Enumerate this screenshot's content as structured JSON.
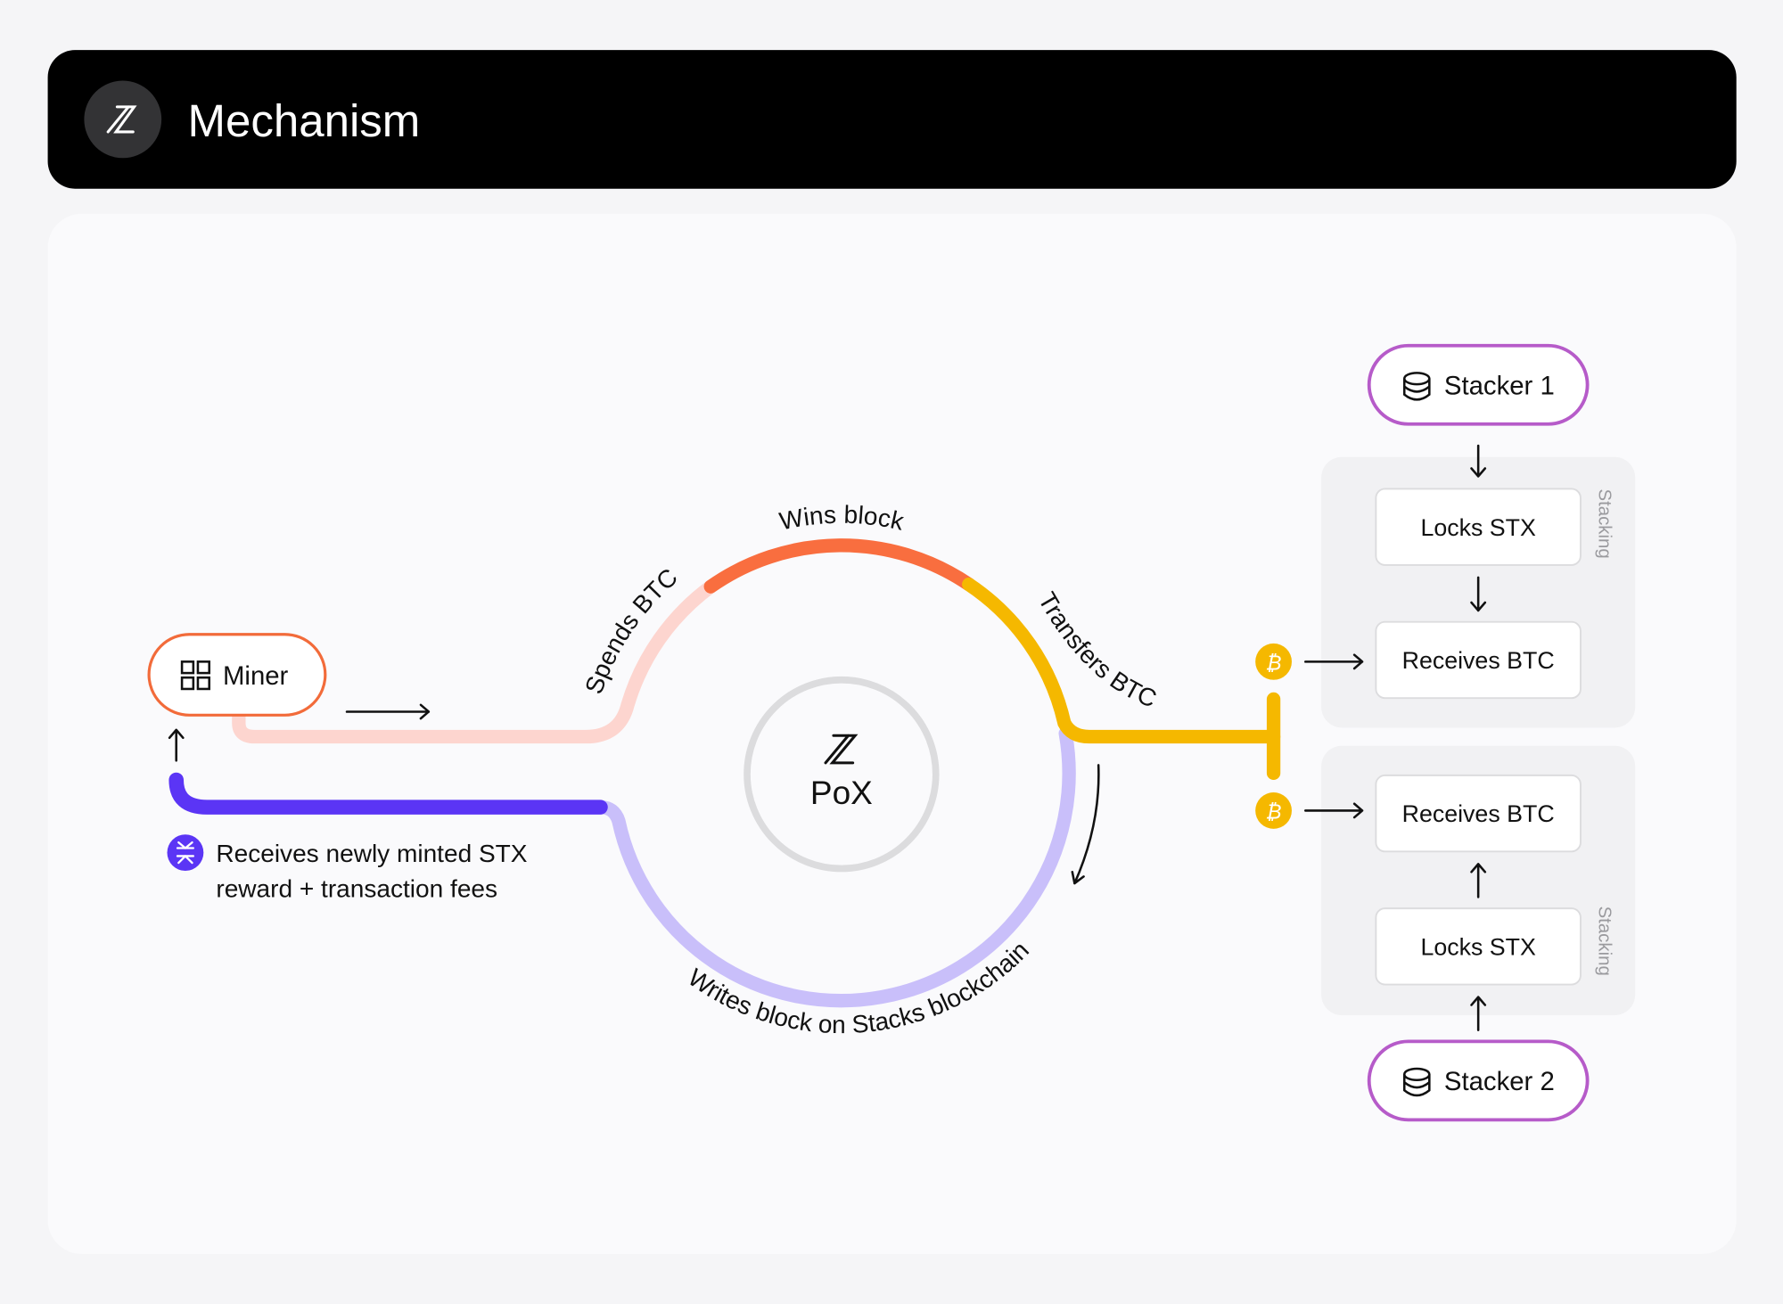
{
  "header": {
    "title": "Mechanism",
    "logo_icon": "stacks-logo-icon"
  },
  "diagram": {
    "center_label": "PoX",
    "miner": {
      "label": "Miner",
      "icon": "grid-icon",
      "color": "#f26b3a"
    },
    "reward_note": {
      "line1": "Receives newly minted STX",
      "line2": "reward + transaction fees",
      "icon": "stx-icon",
      "color": "#5b35f5"
    },
    "cycle_labels": {
      "spends": "Spends BTC",
      "wins": "Wins block",
      "transfers": "Transfers BTC",
      "writes": "Writes block on Stacks blockchain"
    },
    "colors": {
      "spends": "#fdd5cf",
      "wins": "#f96e3f",
      "transfers": "#f5b800",
      "writes": "#c9bffa",
      "reward": "#5b35f5",
      "stacker_border": "#b65bc9"
    },
    "stackers": [
      {
        "label": "Stacker 1",
        "icon": "database-icon",
        "group_label": "Stacking",
        "steps": [
          "Locks STX",
          "Receives BTC"
        ]
      },
      {
        "label": "Stacker 2",
        "icon": "database-icon",
        "group_label": "Stacking",
        "steps": [
          "Receives BTC",
          "Locks STX"
        ]
      }
    ],
    "coin_icon": "bitcoin-icon"
  }
}
